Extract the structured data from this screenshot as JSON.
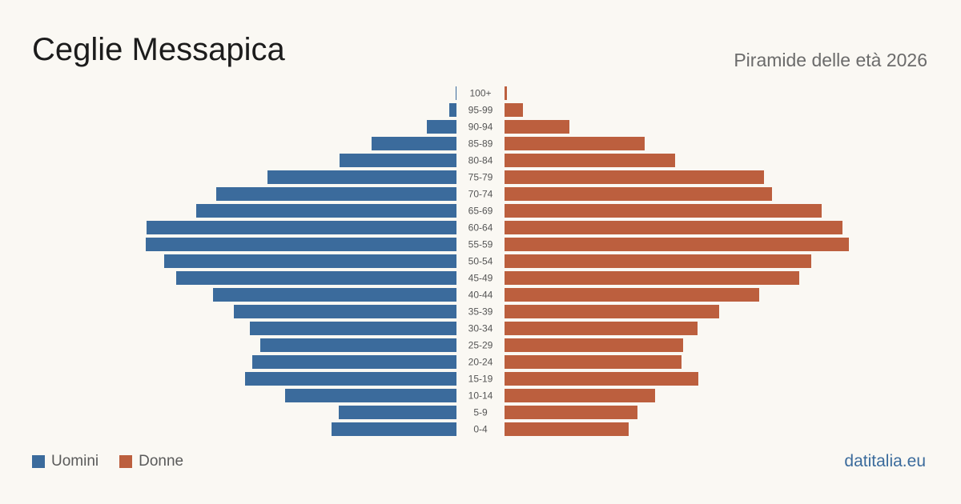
{
  "header": {
    "title": "Ceglie Messapica",
    "subtitle": "Piramide delle età 2026"
  },
  "legend": {
    "men_label": "Uomini",
    "women_label": "Donne"
  },
  "footer": {
    "source": "datitalia.eu"
  },
  "colors": {
    "men": "#3b6b9c",
    "women": "#bc5f3e"
  },
  "chart_data": {
    "type": "bar",
    "orientation": "horizontal-pyramid",
    "title": "Ceglie Messapica",
    "subtitle": "Piramide delle età 2026",
    "categories": [
      "100+",
      "95-99",
      "90-94",
      "85-89",
      "80-84",
      "75-79",
      "70-74",
      "65-69",
      "60-64",
      "55-59",
      "50-54",
      "45-49",
      "40-44",
      "35-39",
      "30-34",
      "25-29",
      "20-24",
      "15-19",
      "10-14",
      "5-9",
      "0-4"
    ],
    "series": [
      {
        "name": "Uomini",
        "values": [
          1,
          9,
          37,
          106,
          146,
          236,
          300,
          325,
          387,
          388,
          365,
          350,
          304,
          278,
          258,
          245,
          255,
          264,
          214,
          147,
          156
        ]
      },
      {
        "name": "Donne",
        "values": [
          3,
          23,
          81,
          175,
          213,
          324,
          334,
          396,
          422,
          430,
          383,
          368,
          318,
          268,
          241,
          223,
          221,
          242,
          188,
          166,
          155
        ]
      }
    ],
    "grid": false,
    "legend_position": "bottom-left"
  }
}
